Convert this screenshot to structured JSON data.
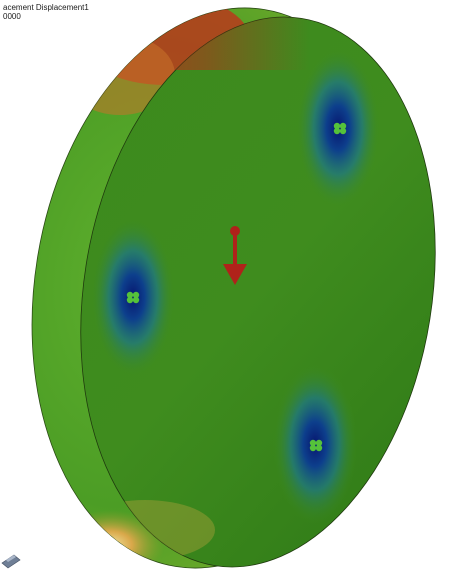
{
  "plot": {
    "title": "acement Displacement1",
    "scale_line": "0000"
  },
  "model": {
    "type": "circular plate with three fixtures and a downward load",
    "fixture_count": 3,
    "load_arrow_direction": "down"
  },
  "colors": {
    "background": "#ffffff",
    "plot_face": "#3f8a1c",
    "plot_face_light": "#5aa82c",
    "high_displacement": "#a5201a",
    "mid_displacement": "#d8b23a",
    "low_displacement": "#0c1e78",
    "fixture_marker": "#4fbf3a",
    "load_arrow": "#b0221a"
  },
  "icons": {
    "view_triad": "triad-icon",
    "load": "force-arrow-icon",
    "fixture": "fixture-icon"
  }
}
